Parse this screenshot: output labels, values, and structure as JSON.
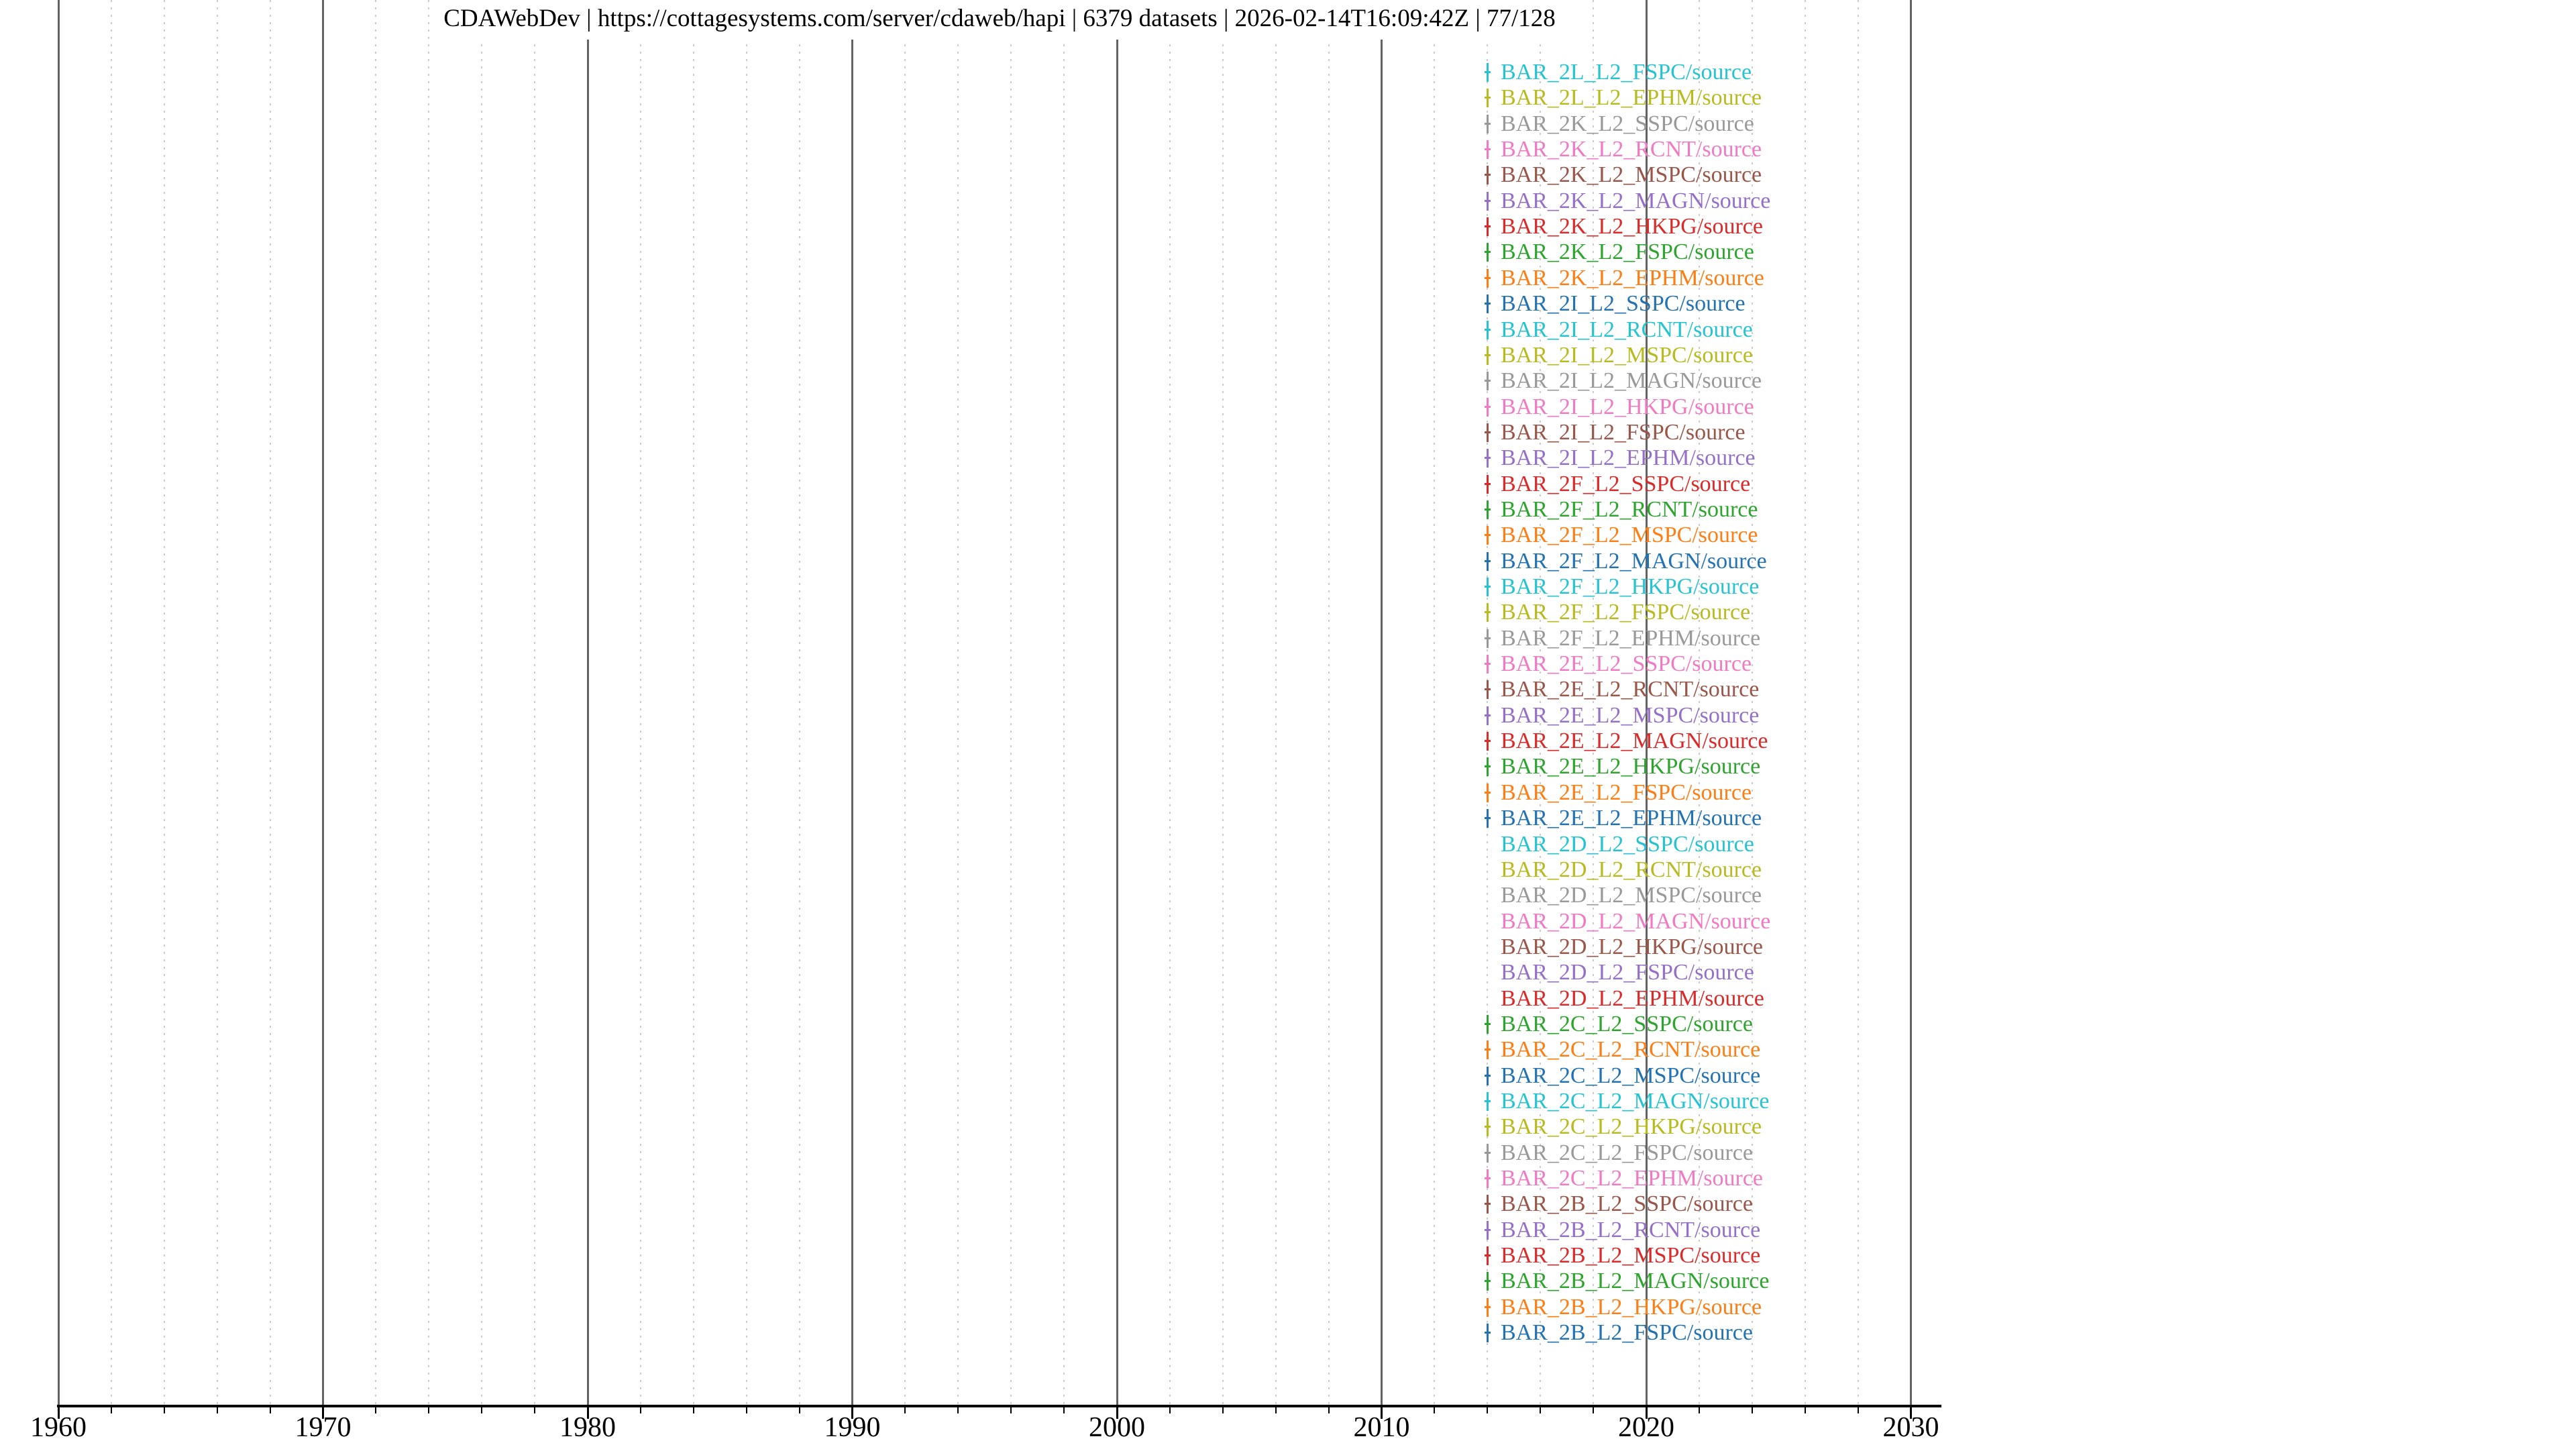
{
  "header": {
    "title": "CDAWebDev | https://cottagesystems.com/server/cdaweb/hapi | 6379 datasets | 2026-02-14T16:09:42Z | 77/128",
    "server_label": "CDAWebDev",
    "server_url": "https://cottagesystems.com/server/cdaweb/hapi",
    "dataset_count_text": "6379 datasets",
    "timestamp": "2026-02-14T16:09:42Z",
    "page_indicator": "77/128",
    "separator": " | "
  },
  "colors": {
    "background": "#ffffff",
    "axis": "#000000",
    "grid_decade": "#636363",
    "grid_minor": "#cbcbcb",
    "title_text": "#000000",
    "tick_label_text": "#000000"
  },
  "chart_data": {
    "type": "scatter",
    "title": "CDAWebDev | https://cottagesystems.com/server/cdaweb/hapi | 6379 datasets | 2026-02-14T16:09:42Z | 77/128",
    "xlabel": "",
    "ylabel": "",
    "xlim_years": [
      1960,
      2031.2
    ],
    "x_major_ticks": [
      1960,
      1970,
      1980,
      1990,
      2000,
      2010,
      2020,
      2030
    ],
    "x_minor_tick_step_years": 2,
    "grid": "decade solid vertical lines, 2-year dotted minor vertical lines",
    "legend_position": "none",
    "marker_note": "each dataset row shows a tiny time-coverage tick near year 2014",
    "marker_year": 2014.0,
    "series": [
      {
        "label": "BAR_2L_L2_FSPC/source",
        "color": "#26c3d2",
        "marker": true
      },
      {
        "label": "BAR_2L_L2_EPHM/source",
        "color": "#b9ba20",
        "marker": true
      },
      {
        "label": "BAR_2K_L2_SSPC/source",
        "color": "#999999",
        "marker": true
      },
      {
        "label": "BAR_2K_L2_RCNT/source",
        "color": "#f07ac4",
        "marker": true
      },
      {
        "label": "BAR_2K_L2_MSPC/source",
        "color": "#9a5648",
        "marker": true
      },
      {
        "label": "BAR_2K_L2_MAGN/source",
        "color": "#9670c8",
        "marker": true
      },
      {
        "label": "BAR_2K_L2_HKPG/source",
        "color": "#da2a2a",
        "marker": true
      },
      {
        "label": "BAR_2K_L2_FSPC/source",
        "color": "#2da42d",
        "marker": true
      },
      {
        "label": "BAR_2K_L2_EPHM/source",
        "color": "#fc7e14",
        "marker": true
      },
      {
        "label": "BAR_2I_L2_SSPC/source",
        "color": "#2372b2",
        "marker": true
      },
      {
        "label": "BAR_2I_L2_RCNT/source",
        "color": "#26c3d2",
        "marker": true
      },
      {
        "label": "BAR_2I_L2_MSPC/source",
        "color": "#b9ba20",
        "marker": true
      },
      {
        "label": "BAR_2I_L2_MAGN/source",
        "color": "#999999",
        "marker": true
      },
      {
        "label": "BAR_2I_L2_HKPG/source",
        "color": "#f07ac4",
        "marker": true
      },
      {
        "label": "BAR_2I_L2_FSPC/source",
        "color": "#9a5648",
        "marker": true
      },
      {
        "label": "BAR_2I_L2_EPHM/source",
        "color": "#9670c8",
        "marker": true
      },
      {
        "label": "BAR_2F_L2_SSPC/source",
        "color": "#da2a2a",
        "marker": true
      },
      {
        "label": "BAR_2F_L2_RCNT/source",
        "color": "#2da42d",
        "marker": true
      },
      {
        "label": "BAR_2F_L2_MSPC/source",
        "color": "#fc7e14",
        "marker": true
      },
      {
        "label": "BAR_2F_L2_MAGN/source",
        "color": "#2372b2",
        "marker": true
      },
      {
        "label": "BAR_2F_L2_HKPG/source",
        "color": "#26c3d2",
        "marker": true
      },
      {
        "label": "BAR_2F_L2_FSPC/source",
        "color": "#b9ba20",
        "marker": true
      },
      {
        "label": "BAR_2F_L2_EPHM/source",
        "color": "#999999",
        "marker": true
      },
      {
        "label": "BAR_2E_L2_SSPC/source",
        "color": "#f07ac4",
        "marker": true
      },
      {
        "label": "BAR_2E_L2_RCNT/source",
        "color": "#9a5648",
        "marker": true
      },
      {
        "label": "BAR_2E_L2_MSPC/source",
        "color": "#9670c8",
        "marker": true
      },
      {
        "label": "BAR_2E_L2_MAGN/source",
        "color": "#da2a2a",
        "marker": true
      },
      {
        "label": "BAR_2E_L2_HKPG/source",
        "color": "#2da42d",
        "marker": true
      },
      {
        "label": "BAR_2E_L2_FSPC/source",
        "color": "#fc7e14",
        "marker": true
      },
      {
        "label": "BAR_2E_L2_EPHM/source",
        "color": "#2372b2",
        "marker": true
      },
      {
        "label": "BAR_2D_L2_SSPC/source",
        "color": "#26c3d2",
        "marker": false
      },
      {
        "label": "BAR_2D_L2_RCNT/source",
        "color": "#b9ba20",
        "marker": false
      },
      {
        "label": "BAR_2D_L2_MSPC/source",
        "color": "#999999",
        "marker": false
      },
      {
        "label": "BAR_2D_L2_MAGN/source",
        "color": "#f07ac4",
        "marker": false
      },
      {
        "label": "BAR_2D_L2_HKPG/source",
        "color": "#9a5648",
        "marker": false
      },
      {
        "label": "BAR_2D_L2_FSPC/source",
        "color": "#9670c8",
        "marker": false
      },
      {
        "label": "BAR_2D_L2_EPHM/source",
        "color": "#da2a2a",
        "marker": false
      },
      {
        "label": "BAR_2C_L2_SSPC/source",
        "color": "#2da42d",
        "marker": true
      },
      {
        "label": "BAR_2C_L2_RCNT/source",
        "color": "#fc7e14",
        "marker": true
      },
      {
        "label": "BAR_2C_L2_MSPC/source",
        "color": "#2372b2",
        "marker": true
      },
      {
        "label": "BAR_2C_L2_MAGN/source",
        "color": "#26c3d2",
        "marker": true
      },
      {
        "label": "BAR_2C_L2_HKPG/source",
        "color": "#b9ba20",
        "marker": true
      },
      {
        "label": "BAR_2C_L2_FSPC/source",
        "color": "#999999",
        "marker": true
      },
      {
        "label": "BAR_2C_L2_EPHM/source",
        "color": "#f07ac4",
        "marker": true
      },
      {
        "label": "BAR_2B_L2_SSPC/source",
        "color": "#9a5648",
        "marker": true
      },
      {
        "label": "BAR_2B_L2_RCNT/source",
        "color": "#9670c8",
        "marker": true
      },
      {
        "label": "BAR_2B_L2_MSPC/source",
        "color": "#da2a2a",
        "marker": true
      },
      {
        "label": "BAR_2B_L2_MAGN/source",
        "color": "#2da42d",
        "marker": true
      },
      {
        "label": "BAR_2B_L2_HKPG/source",
        "color": "#fc7e14",
        "marker": true
      },
      {
        "label": "BAR_2B_L2_FSPC/source",
        "color": "#2372b2",
        "marker": true
      }
    ]
  }
}
